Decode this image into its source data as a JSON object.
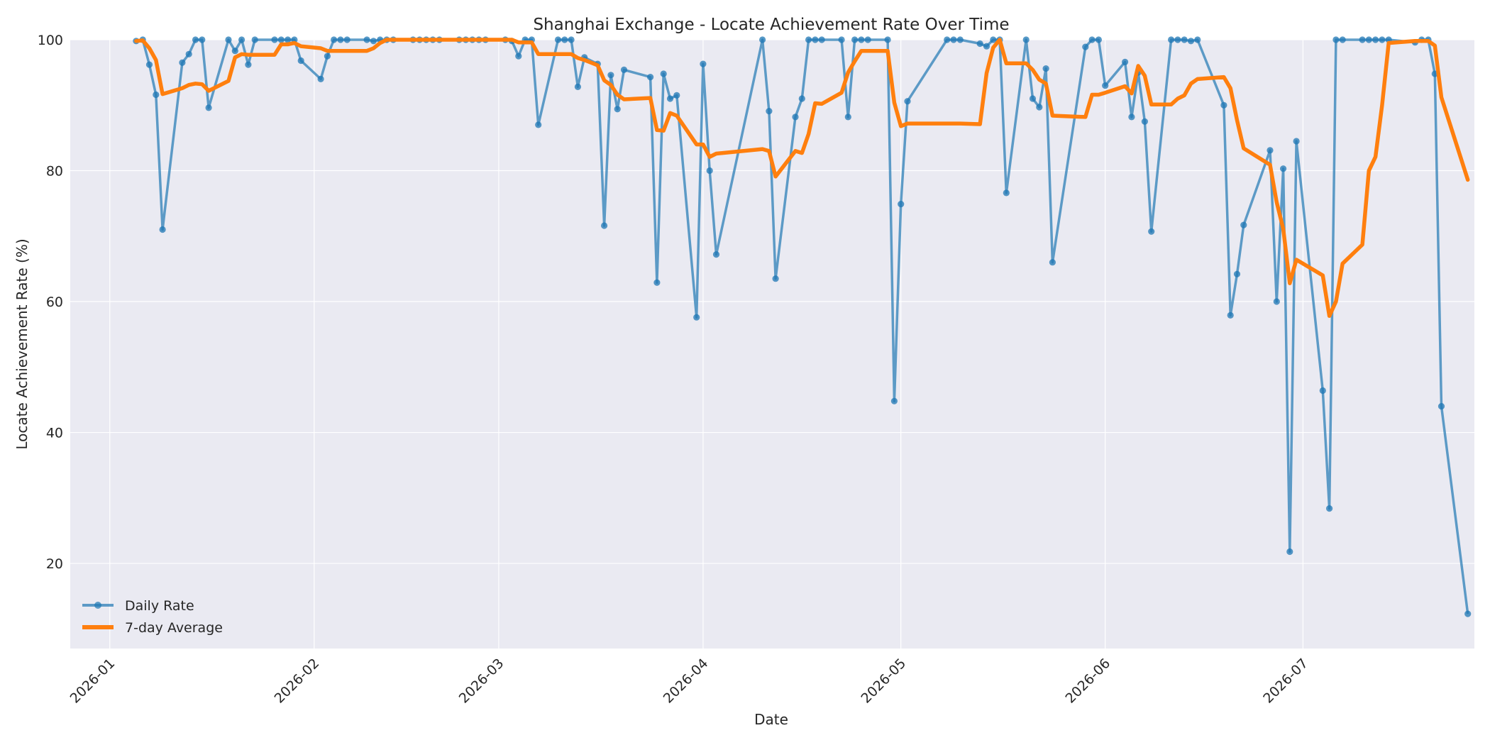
{
  "chart_data": {
    "type": "line",
    "title": "Shanghai Exchange - Locate Achievement Rate Over Time",
    "xlabel": "Date",
    "ylabel": "Locate Achievement Rate (%)",
    "xlim": [
      "2025-12-26",
      "2026-07-27"
    ],
    "ylim": [
      7,
      100
    ],
    "x_ticks": [
      "2026-01-01",
      "2026-02-01",
      "2026-03-01",
      "2026-04-01",
      "2026-05-01",
      "2026-06-01",
      "2026-07-01"
    ],
    "x_tick_labels": [
      "2026-01",
      "2026-02",
      "2026-03",
      "2026-04",
      "2026-05",
      "2026-06",
      "2026-07"
    ],
    "y_ticks": [
      20,
      40,
      60,
      80,
      100
    ],
    "y_tick_labels": [
      "20",
      "40",
      "60",
      "80",
      "100"
    ],
    "grid": true,
    "legend_position": "lower-left",
    "colors": {
      "plot_background": "#eaeaf2",
      "grid": "#ffffff",
      "daily": "#1f77b4",
      "average": "#ff7f0e"
    },
    "series": [
      {
        "name": "Daily Rate",
        "style": "line-marker",
        "points": [
          [
            "2026-01-05",
            99.8
          ],
          [
            "2026-01-06",
            100
          ],
          [
            "2026-01-07",
            96.2
          ],
          [
            "2026-01-08",
            91.6
          ],
          [
            "2026-01-09",
            71.0
          ],
          [
            "2026-01-12",
            96.5
          ],
          [
            "2026-01-13",
            97.8
          ],
          [
            "2026-01-14",
            100
          ],
          [
            "2026-01-15",
            100
          ],
          [
            "2026-01-16",
            89.6
          ],
          [
            "2026-01-19",
            100
          ],
          [
            "2026-01-20",
            98.3
          ],
          [
            "2026-01-21",
            100
          ],
          [
            "2026-01-22",
            96.2
          ],
          [
            "2026-01-23",
            100
          ],
          [
            "2026-01-26",
            100
          ],
          [
            "2026-01-27",
            100
          ],
          [
            "2026-01-28",
            100
          ],
          [
            "2026-01-29",
            100
          ],
          [
            "2026-01-30",
            96.8
          ],
          [
            "2026-02-02",
            94.0
          ],
          [
            "2026-02-03",
            97.5
          ],
          [
            "2026-02-04",
            100
          ],
          [
            "2026-02-05",
            100
          ],
          [
            "2026-02-06",
            100
          ],
          [
            "2026-02-09",
            100
          ],
          [
            "2026-02-10",
            99.8
          ],
          [
            "2026-02-11",
            100
          ],
          [
            "2026-02-12",
            100
          ],
          [
            "2026-02-13",
            100
          ],
          [
            "2026-02-16",
            100
          ],
          [
            "2026-02-17",
            100
          ],
          [
            "2026-02-18",
            100
          ],
          [
            "2026-02-19",
            100
          ],
          [
            "2026-02-20",
            100
          ],
          [
            "2026-02-23",
            100
          ],
          [
            "2026-02-24",
            100
          ],
          [
            "2026-02-25",
            100
          ],
          [
            "2026-02-26",
            100
          ],
          [
            "2026-02-27",
            100
          ],
          [
            "2026-03-02",
            100
          ],
          [
            "2026-03-03",
            99.8
          ],
          [
            "2026-03-04",
            97.5
          ],
          [
            "2026-03-05",
            100
          ],
          [
            "2026-03-06",
            100
          ],
          [
            "2026-03-07",
            87.0
          ],
          [
            "2026-03-10",
            100
          ],
          [
            "2026-03-11",
            100
          ],
          [
            "2026-03-12",
            100
          ],
          [
            "2026-03-13",
            92.8
          ],
          [
            "2026-03-14",
            97.3
          ],
          [
            "2026-03-16",
            96.3
          ],
          [
            "2026-03-17",
            71.6
          ],
          [
            "2026-03-18",
            94.6
          ],
          [
            "2026-03-19",
            89.4
          ],
          [
            "2026-03-20",
            95.4
          ],
          [
            "2026-03-24",
            94.3
          ],
          [
            "2026-03-25",
            62.9
          ],
          [
            "2026-03-26",
            94.8
          ],
          [
            "2026-03-27",
            91.0
          ],
          [
            "2026-03-28",
            91.5
          ],
          [
            "2026-03-31",
            57.6
          ],
          [
            "2026-04-01",
            96.3
          ],
          [
            "2026-04-02",
            80.0
          ],
          [
            "2026-04-03",
            67.2
          ],
          [
            "2026-04-10",
            100
          ],
          [
            "2026-04-11",
            89.1
          ],
          [
            "2026-04-12",
            63.5
          ],
          [
            "2026-04-15",
            88.2
          ],
          [
            "2026-04-16",
            91.0
          ],
          [
            "2026-04-17",
            100
          ],
          [
            "2026-04-18",
            100
          ],
          [
            "2026-04-19",
            100
          ],
          [
            "2026-04-22",
            100
          ],
          [
            "2026-04-23",
            88.2
          ],
          [
            "2026-04-24",
            100
          ],
          [
            "2026-04-25",
            100
          ],
          [
            "2026-04-26",
            100
          ],
          [
            "2026-04-29",
            100
          ],
          [
            "2026-04-30",
            44.8
          ],
          [
            "2026-05-01",
            74.9
          ],
          [
            "2026-05-02",
            90.6
          ],
          [
            "2026-05-08",
            100
          ],
          [
            "2026-05-09",
            100
          ],
          [
            "2026-05-10",
            100
          ],
          [
            "2026-05-13",
            99.4
          ],
          [
            "2026-05-14",
            99.0
          ],
          [
            "2026-05-15",
            100
          ],
          [
            "2026-05-16",
            100
          ],
          [
            "2026-05-17",
            76.6
          ],
          [
            "2026-05-20",
            100
          ],
          [
            "2026-05-21",
            91.0
          ],
          [
            "2026-05-22",
            89.7
          ],
          [
            "2026-05-23",
            95.6
          ],
          [
            "2026-05-24",
            66.0
          ],
          [
            "2026-05-29",
            98.9
          ],
          [
            "2026-05-30",
            100
          ],
          [
            "2026-05-31",
            100
          ],
          [
            "2026-06-01",
            93.0
          ],
          [
            "2026-06-04",
            96.6
          ],
          [
            "2026-06-05",
            88.2
          ],
          [
            "2026-06-06",
            95.0
          ],
          [
            "2026-06-07",
            87.5
          ],
          [
            "2026-06-08",
            70.7
          ],
          [
            "2026-06-11",
            100
          ],
          [
            "2026-06-12",
            100
          ],
          [
            "2026-06-13",
            100
          ],
          [
            "2026-06-14",
            99.8
          ],
          [
            "2026-06-15",
            100
          ],
          [
            "2026-06-19",
            90.0
          ],
          [
            "2026-06-20",
            57.9
          ],
          [
            "2026-06-21",
            64.2
          ],
          [
            "2026-06-22",
            71.7
          ],
          [
            "2026-06-26",
            83.1
          ],
          [
            "2026-06-27",
            60.0
          ],
          [
            "2026-06-28",
            80.3
          ],
          [
            "2026-06-29",
            21.8
          ],
          [
            "2026-06-30",
            84.5
          ],
          [
            "2026-07-04",
            46.4
          ],
          [
            "2026-07-05",
            28.4
          ],
          [
            "2026-07-06",
            100
          ],
          [
            "2026-07-07",
            100
          ],
          [
            "2026-07-10",
            100
          ],
          [
            "2026-07-11",
            100
          ],
          [
            "2026-07-12",
            100
          ],
          [
            "2026-07-13",
            100
          ],
          [
            "2026-07-14",
            100
          ],
          [
            "2026-07-18",
            99.6
          ],
          [
            "2026-07-19",
            100
          ],
          [
            "2026-07-20",
            100
          ],
          [
            "2026-07-21",
            94.8
          ],
          [
            "2026-07-22",
            44.0
          ],
          [
            "2026-07-26",
            12.3
          ]
        ]
      },
      {
        "name": "7-day Average",
        "style": "line",
        "points": [
          [
            "2026-01-05",
            99.8
          ],
          [
            "2026-01-06",
            99.9
          ],
          [
            "2026-01-07",
            98.7
          ],
          [
            "2026-01-08",
            96.9
          ],
          [
            "2026-01-09",
            91.7
          ],
          [
            "2026-01-12",
            92.6
          ],
          [
            "2026-01-13",
            93.1
          ],
          [
            "2026-01-14",
            93.3
          ],
          [
            "2026-01-15",
            93.2
          ],
          [
            "2026-01-16",
            92.2
          ],
          [
            "2026-01-19",
            93.7
          ],
          [
            "2026-01-20",
            97.3
          ],
          [
            "2026-01-21",
            97.8
          ],
          [
            "2026-01-22",
            97.7
          ],
          [
            "2026-01-23",
            97.7
          ],
          [
            "2026-01-26",
            97.7
          ],
          [
            "2026-01-27",
            99.3
          ],
          [
            "2026-01-28",
            99.3
          ],
          [
            "2026-01-29",
            99.5
          ],
          [
            "2026-01-30",
            99.0
          ],
          [
            "2026-02-02",
            98.7
          ],
          [
            "2026-02-03",
            98.3
          ],
          [
            "2026-02-04",
            98.3
          ],
          [
            "2026-02-05",
            98.3
          ],
          [
            "2026-02-06",
            98.3
          ],
          [
            "2026-02-09",
            98.3
          ],
          [
            "2026-02-10",
            98.7
          ],
          [
            "2026-02-11",
            99.5
          ],
          [
            "2026-02-12",
            100
          ],
          [
            "2026-02-13",
            100
          ],
          [
            "2026-02-16",
            100
          ],
          [
            "2026-02-17",
            100
          ],
          [
            "2026-02-18",
            100
          ],
          [
            "2026-02-19",
            100
          ],
          [
            "2026-02-20",
            100
          ],
          [
            "2026-02-23",
            100
          ],
          [
            "2026-02-24",
            100
          ],
          [
            "2026-02-25",
            100
          ],
          [
            "2026-02-26",
            100
          ],
          [
            "2026-02-27",
            100
          ],
          [
            "2026-03-02",
            100
          ],
          [
            "2026-03-03",
            100
          ],
          [
            "2026-03-04",
            99.6
          ],
          [
            "2026-03-05",
            99.6
          ],
          [
            "2026-03-06",
            99.6
          ],
          [
            "2026-03-07",
            97.8
          ],
          [
            "2026-03-10",
            97.8
          ],
          [
            "2026-03-11",
            97.8
          ],
          [
            "2026-03-12",
            97.8
          ],
          [
            "2026-03-13",
            97.2
          ],
          [
            "2026-03-14",
            96.9
          ],
          [
            "2026-03-16",
            96.1
          ],
          [
            "2026-03-17",
            93.8
          ],
          [
            "2026-03-18",
            93.1
          ],
          [
            "2026-03-19",
            91.6
          ],
          [
            "2026-03-20",
            90.9
          ],
          [
            "2026-03-24",
            91.1
          ],
          [
            "2026-03-25",
            86.2
          ],
          [
            "2026-03-26",
            86.1
          ],
          [
            "2026-03-27",
            88.8
          ],
          [
            "2026-03-28",
            88.4
          ],
          [
            "2026-03-31",
            84.0
          ],
          [
            "2026-04-01",
            84.0
          ],
          [
            "2026-04-02",
            82.1
          ],
          [
            "2026-04-03",
            82.6
          ],
          [
            "2026-04-10",
            83.3
          ],
          [
            "2026-04-11",
            83.0
          ],
          [
            "2026-04-12",
            79.1
          ],
          [
            "2026-04-15",
            83.0
          ],
          [
            "2026-04-16",
            82.7
          ],
          [
            "2026-04-17",
            85.6
          ],
          [
            "2026-04-18",
            90.3
          ],
          [
            "2026-04-19",
            90.2
          ],
          [
            "2026-04-22",
            91.9
          ],
          [
            "2026-04-23",
            95.0
          ],
          [
            "2026-04-24",
            96.7
          ],
          [
            "2026-04-25",
            98.3
          ],
          [
            "2026-04-26",
            98.3
          ],
          [
            "2026-04-29",
            98.3
          ],
          [
            "2026-04-30",
            90.4
          ],
          [
            "2026-05-01",
            86.8
          ],
          [
            "2026-05-02",
            87.2
          ],
          [
            "2026-05-08",
            87.2
          ],
          [
            "2026-05-09",
            87.2
          ],
          [
            "2026-05-10",
            87.2
          ],
          [
            "2026-05-13",
            87.1
          ],
          [
            "2026-05-14",
            94.9
          ],
          [
            "2026-05-15",
            98.8
          ],
          [
            "2026-05-16",
            100
          ],
          [
            "2026-05-17",
            96.4
          ],
          [
            "2026-05-20",
            96.4
          ],
          [
            "2026-05-21",
            95.4
          ],
          [
            "2026-05-22",
            93.9
          ],
          [
            "2026-05-23",
            93.3
          ],
          [
            "2026-05-24",
            88.4
          ],
          [
            "2026-05-29",
            88.2
          ],
          [
            "2026-05-30",
            91.6
          ],
          [
            "2026-05-31",
            91.6
          ],
          [
            "2026-06-01",
            91.9
          ],
          [
            "2026-06-04",
            92.9
          ],
          [
            "2026-06-05",
            91.8
          ],
          [
            "2026-06-06",
            96.0
          ],
          [
            "2026-06-07",
            94.5
          ],
          [
            "2026-06-08",
            90.1
          ],
          [
            "2026-06-11",
            90.1
          ],
          [
            "2026-06-12",
            91.0
          ],
          [
            "2026-06-13",
            91.5
          ],
          [
            "2026-06-14",
            93.3
          ],
          [
            "2026-06-15",
            94.0
          ],
          [
            "2026-06-19",
            94.3
          ],
          [
            "2026-06-20",
            92.6
          ],
          [
            "2026-06-21",
            87.7
          ],
          [
            "2026-06-22",
            83.4
          ],
          [
            "2026-06-26",
            80.9
          ],
          [
            "2026-06-27",
            75.2
          ],
          [
            "2026-06-28",
            71.1
          ],
          [
            "2026-06-29",
            62.8
          ],
          [
            "2026-06-30",
            66.4
          ],
          [
            "2026-07-04",
            64.0
          ],
          [
            "2026-07-05",
            57.8
          ],
          [
            "2026-07-06",
            60.0
          ],
          [
            "2026-07-07",
            65.8
          ],
          [
            "2026-07-10",
            68.7
          ],
          [
            "2026-07-11",
            80.0
          ],
          [
            "2026-07-12",
            82.1
          ],
          [
            "2026-07-13",
            90.0
          ],
          [
            "2026-07-14",
            99.5
          ],
          [
            "2026-07-18",
            99.8
          ],
          [
            "2026-07-19",
            99.8
          ],
          [
            "2026-07-20",
            99.8
          ],
          [
            "2026-07-21",
            99.1
          ],
          [
            "2026-07-22",
            91.2
          ],
          [
            "2026-07-26",
            78.6
          ]
        ]
      }
    ]
  }
}
